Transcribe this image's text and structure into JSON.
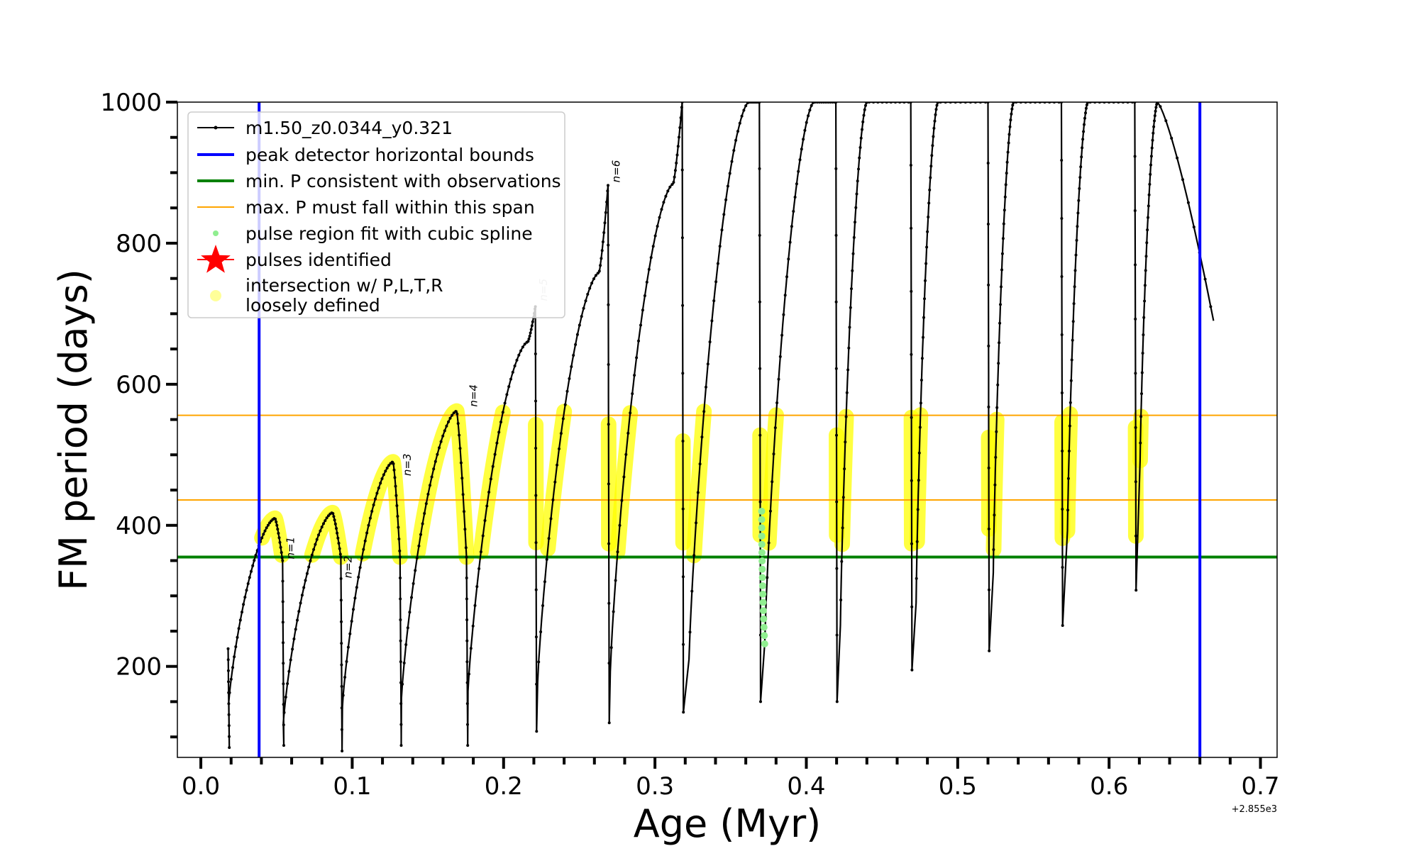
{
  "chart_data": {
    "type": "line",
    "title": "",
    "xlabel": "Age (Myr)",
    "ylabel": "FM period (days)",
    "x_offset_label": "+2.855e3",
    "xlim": [
      -0.0155,
      0.711
    ],
    "ylim": [
      71,
      1000
    ],
    "xticks": [
      0.0,
      0.1,
      0.2,
      0.3,
      0.4,
      0.5,
      0.6,
      0.7
    ],
    "xtick_labels": [
      "0.0",
      "0.1",
      "0.2",
      "0.3",
      "0.4",
      "0.5",
      "0.6",
      "0.7"
    ],
    "yticks": [
      200,
      400,
      600,
      800,
      1000
    ],
    "ytick_labels": [
      "200",
      "400",
      "600",
      "800",
      "1000"
    ],
    "grid": false,
    "legend_position": "top-left",
    "legend": [
      {
        "label": "m1.50_z0.0344_y0.321",
        "kind": "line-dot",
        "color": "#000000"
      },
      {
        "label": "peak detector horizontal bounds",
        "kind": "line",
        "color": "#0000ff"
      },
      {
        "label": "min. P consistent with observations",
        "kind": "line",
        "color": "#008000"
      },
      {
        "label": "max. P must fall within this span",
        "kind": "line",
        "color": "#ffa500"
      },
      {
        "label": "pulse region fit with cubic spline",
        "kind": "dot",
        "color": "#90ee90"
      },
      {
        "label": "pulses identified",
        "kind": "star",
        "color": "#ff0000"
      },
      {
        "label": "intersection w/ P,L,T,R\nloosely defined",
        "kind": "circle",
        "color": "#ffff99"
      }
    ],
    "vlines": [
      {
        "name": "peak detector horizontal bounds",
        "x": 0.0385,
        "color": "#0000ff"
      },
      {
        "name": "peak detector horizontal bounds",
        "x": 0.66,
        "color": "#0000ff"
      }
    ],
    "hlines": [
      {
        "name": "min. P consistent with observations",
        "y": 355,
        "color": "#008000"
      },
      {
        "name": "max. P must fall within this span",
        "y": 436,
        "color": "#ffa500"
      },
      {
        "name": "max. P must fall within this span",
        "y": 556,
        "color": "#ffa500"
      }
    ],
    "series": [
      {
        "name": "m1.50_z0.0344_y0.321",
        "color": "#000000",
        "cycles": [
          {
            "t0": 0.018,
            "p_start": 225,
            "p_min": 85,
            "peak_t": 0.049,
            "p_peak": 410,
            "t_end": 0.054
          },
          {
            "t0": 0.054,
            "p_start": 350,
            "p_min": 88,
            "peak_t": 0.087,
            "p_peak": 418,
            "t_end": 0.0925
          },
          {
            "t0": 0.0925,
            "p_start": 355,
            "p_min": 80,
            "peak_t": 0.127,
            "p_peak": 490,
            "t_end": 0.1316
          },
          {
            "t0": 0.1316,
            "p_start": 355,
            "p_min": 88,
            "peak_t": 0.169,
            "p_peak": 562,
            "t_end": 0.1755
          },
          {
            "t0": 0.1755,
            "p_start": 355,
            "p_min": 88,
            "peak_t": 0.216,
            "p_peak": 660,
            "t_end": 0.221
          },
          {
            "t0": 0.221,
            "p_start": 710,
            "p_min": 108,
            "peak_t": 0.263,
            "p_peak": 758,
            "t_end": 0.269
          },
          {
            "t0": 0.269,
            "p_start": 882,
            "p_min": 120,
            "peak_t": 0.312,
            "p_peak": 884,
            "t_end": 0.318
          },
          {
            "t0": 0.318,
            "p_start": 1000,
            "p_min": 135,
            "peak_t": 0.362,
            "p_peak": 1000,
            "t_end": 0.369
          },
          {
            "t0": 0.369,
            "p_start": 1000,
            "p_min": 150,
            "peak_t": 0.405,
            "p_peak": 1000,
            "t_end": 0.4195
          },
          {
            "t0": 0.4195,
            "p_start": 1000,
            "p_min": 150,
            "peak_t": 0.44,
            "p_peak": 1000,
            "t_end": 0.469
          },
          {
            "t0": 0.469,
            "p_start": 1000,
            "p_min": 195,
            "peak_t": 0.487,
            "p_peak": 1000,
            "t_end": 0.52
          },
          {
            "t0": 0.52,
            "p_start": 1000,
            "p_min": 222,
            "peak_t": 0.537,
            "p_peak": 1000,
            "t_end": 0.5685
          },
          {
            "t0": 0.5685,
            "p_start": 1000,
            "p_min": 258,
            "peak_t": 0.586,
            "p_peak": 1000,
            "t_end": 0.617
          },
          {
            "t0": 0.617,
            "p_start": 1000,
            "p_min": 308,
            "peak_t": 0.632,
            "p_peak": 1000,
            "t_end": 0.669
          }
        ],
        "tail": {
          "t": 0.669,
          "p_min": 690
        }
      }
    ],
    "minima": [
      {
        "t": 0.0185,
        "p": 150
      },
      {
        "t": 0.0545,
        "p": 120
      },
      {
        "t": 0.0935,
        "p": 142
      },
      {
        "t": 0.1325,
        "p": 155
      },
      {
        "t": 0.1765,
        "p": 165
      },
      {
        "t": 0.2225,
        "p": 178
      },
      {
        "t": 0.2705,
        "p": 193
      },
      {
        "t": 0.3225,
        "p": 210
      },
      {
        "t": 0.3725,
        "p": 232
      },
      {
        "t": 0.4225,
        "p": 258
      },
      {
        "t": 0.4725,
        "p": 290
      },
      {
        "t": 0.5235,
        "p": 333
      },
      {
        "t": 0.5725,
        "p": 392
      },
      {
        "t": 0.6205,
        "p": 492
      }
    ],
    "spline_points": {
      "name": "pulse region fit with cubic spline",
      "t_range": [
        0.3705,
        0.3725
      ],
      "p_range": [
        232,
        420
      ],
      "color": "#90ee90"
    },
    "annotations": [
      {
        "text": "n=1",
        "t": 0.056,
        "p": 352,
        "color": "#000000"
      },
      {
        "text": "n=2",
        "t": 0.094,
        "p": 325,
        "color": "#000000"
      },
      {
        "text": "n=3",
        "t": 0.133,
        "p": 470,
        "color": "#000000"
      },
      {
        "text": "n=4",
        "t": 0.177,
        "p": 568,
        "color": "#000000"
      },
      {
        "text": "n=5",
        "t": 0.223,
        "p": 718,
        "color": "#c0c0c0"
      },
      {
        "text": "n=6",
        "t": 0.271,
        "p": 886,
        "color": "#000000"
      }
    ]
  }
}
